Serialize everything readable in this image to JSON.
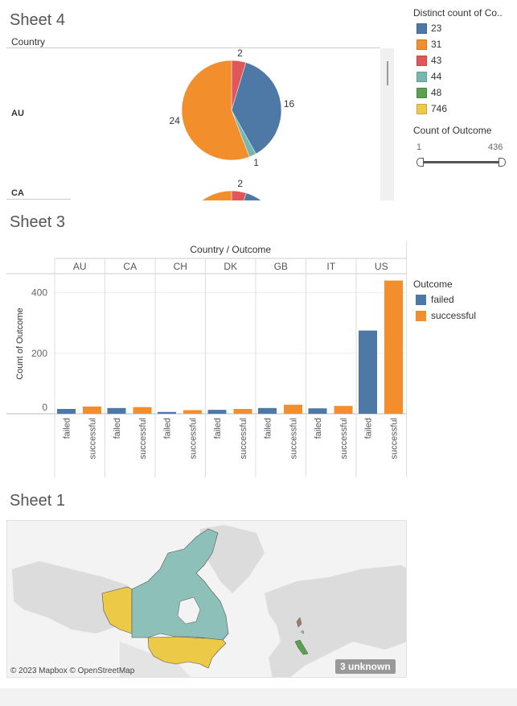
{
  "sheets": {
    "sheet4_title": "Sheet 4",
    "sheet3_title": "Sheet 3",
    "sheet1_title": "Sheet 1"
  },
  "colors": {
    "blue": "#4e79a7",
    "orange": "#f28e2b",
    "red": "#e15759",
    "teal": "#76b7b2",
    "green": "#59a14f",
    "yellow": "#edc948"
  },
  "chart_data": [
    {
      "type": "pie",
      "name": "Sheet 4",
      "row_header": "Country",
      "rows": [
        {
          "label": "AU",
          "slices": [
            {
              "label": "2",
              "value": 2,
              "color": "#e15759"
            },
            {
              "label": "16",
              "value": 16,
              "color": "#4e79a7"
            },
            {
              "label": "1",
              "value": 1,
              "color": "#76b7b2"
            },
            {
              "label": "24",
              "value": 24,
              "color": "#f28e2b"
            }
          ]
        },
        {
          "label": "CA",
          "slices": [
            {
              "label": "2",
              "value": 2,
              "color": "#e15759"
            },
            {
              "label": "",
              "value": 16,
              "color": "#4e79a7"
            },
            {
              "label": "",
              "value": 24,
              "color": "#f28e2b"
            }
          ]
        }
      ],
      "color_legend": {
        "title": "Distinct count of Co..",
        "items": [
          {
            "label": "23",
            "color": "#4e79a7"
          },
          {
            "label": "31",
            "color": "#f28e2b"
          },
          {
            "label": "43",
            "color": "#e15759"
          },
          {
            "label": "44",
            "color": "#76b7b2"
          },
          {
            "label": "48",
            "color": "#59a14f"
          },
          {
            "label": "746",
            "color": "#edc948"
          }
        ]
      },
      "size_legend": {
        "title": "Count of Outcome",
        "min": "1",
        "max": "436"
      }
    },
    {
      "type": "bar",
      "name": "Sheet 3",
      "header": "Country / Outcome",
      "ylabel": "Count of Outcome",
      "ylim": [
        0,
        460
      ],
      "yticks": [
        0,
        200,
        400
      ],
      "categories": [
        "AU",
        "CA",
        "CH",
        "DK",
        "GB",
        "IT",
        "US"
      ],
      "sub_categories": [
        "failed",
        "successful"
      ],
      "series": [
        {
          "name": "failed",
          "color": "#4e79a7",
          "values": [
            16,
            19,
            6,
            13,
            19,
            18,
            275
          ]
        },
        {
          "name": "successful",
          "color": "#f28e2b",
          "values": [
            24,
            22,
            12,
            16,
            30,
            26,
            440
          ]
        }
      ],
      "legend": {
        "title": "Outcome",
        "items": [
          {
            "label": "failed",
            "color": "#4e79a7"
          },
          {
            "label": "successful",
            "color": "#f28e2b"
          }
        ]
      }
    }
  ],
  "map": {
    "attribution": "© 2023 Mapbox © OpenStreetMap",
    "unknown_badge": "3 unknown"
  }
}
